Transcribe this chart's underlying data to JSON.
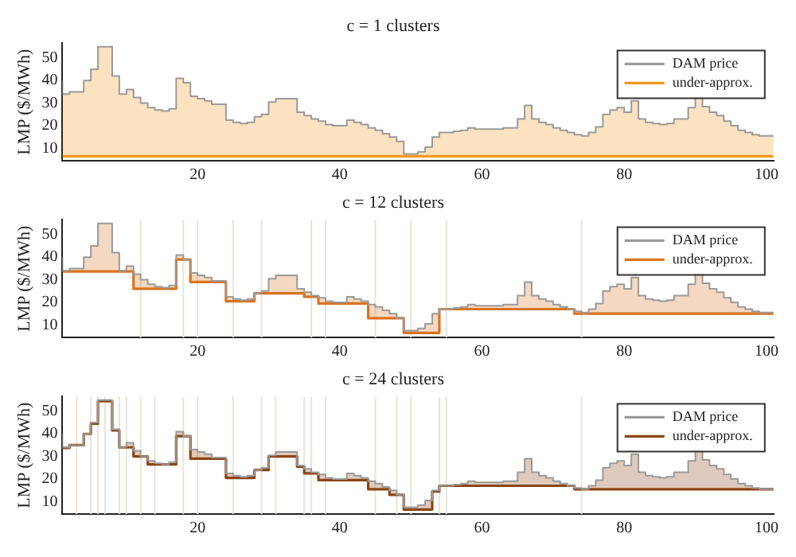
{
  "chart_data": [
    {
      "type": "step",
      "title": "c = 1 clusters",
      "ylabel": "LMP ($/MWh)",
      "xlim": [
        1,
        101
      ],
      "xticks": [
        20,
        40,
        60,
        80,
        100
      ],
      "ylim": [
        4.5,
        56.5
      ],
      "yticks": [
        10,
        20,
        30,
        40,
        50
      ],
      "legend": "top right",
      "x": [
        1,
        2,
        3,
        4,
        5,
        6,
        7,
        8,
        9,
        10,
        11,
        12,
        13,
        14,
        15,
        16,
        17,
        18,
        19,
        20,
        21,
        22,
        23,
        24,
        25,
        26,
        27,
        28,
        29,
        30,
        31,
        32,
        33,
        34,
        35,
        36,
        37,
        38,
        39,
        40,
        41,
        42,
        43,
        44,
        45,
        46,
        47,
        48,
        49,
        50,
        51,
        52,
        53,
        54,
        55,
        56,
        57,
        58,
        59,
        60,
        61,
        62,
        63,
        64,
        65,
        66,
        67,
        68,
        69,
        70,
        71,
        72,
        73,
        74,
        75,
        76,
        77,
        78,
        79,
        80,
        81,
        82,
        83,
        84,
        85,
        86,
        87,
        88,
        89,
        90,
        91,
        92,
        93,
        94,
        95,
        96,
        97,
        98,
        99,
        100,
        101
      ],
      "series": [
        {
          "name": "DAM price",
          "color": "#9a9a9a",
          "values": [
            40,
            34,
            35,
            35,
            40,
            45,
            55,
            55,
            42,
            34,
            36,
            32.5,
            30,
            28,
            27,
            26.5,
            27.5,
            41,
            39,
            33,
            32,
            31,
            29.5,
            29.5,
            22.5,
            21.5,
            21,
            21.5,
            24,
            25,
            30.5,
            32,
            32,
            32,
            26,
            24.5,
            23,
            22,
            20.5,
            20,
            20,
            22.5,
            21.5,
            20.5,
            19,
            18,
            16.5,
            15,
            13,
            7.5,
            7.5,
            8.5,
            10.5,
            15,
            17,
            17,
            17.5,
            18,
            19,
            18.5,
            18.5,
            18.5,
            18.5,
            19,
            19,
            23,
            29,
            23,
            21.5,
            20.5,
            19,
            18,
            17,
            16,
            15.5,
            17,
            19.5,
            25,
            27,
            28,
            26,
            31,
            23,
            21.5,
            21,
            20.5,
            21,
            23,
            23,
            28,
            33,
            28.5,
            26,
            24.5,
            22,
            20,
            18,
            17,
            16,
            15.5,
            15.5
          ]
        },
        {
          "name": "under-approx.",
          "color": "#f5961e",
          "values": [
            6.5,
            6.5,
            6.5,
            6.5,
            6.5,
            6.5,
            6.5,
            6.5,
            6.5,
            6.5,
            6.5,
            6.5,
            6.5,
            6.5,
            6.5,
            6.5,
            6.5,
            6.5,
            6.5,
            6.5,
            6.5,
            6.5,
            6.5,
            6.5,
            6.5,
            6.5,
            6.5,
            6.5,
            6.5,
            6.5,
            6.5,
            6.5,
            6.5,
            6.5,
            6.5,
            6.5,
            6.5,
            6.5,
            6.5,
            6.5,
            6.5,
            6.5,
            6.5,
            6.5,
            6.5,
            6.5,
            6.5,
            6.5,
            6.5,
            6.5,
            6.5,
            6.5,
            6.5,
            6.5,
            6.5,
            6.5,
            6.5,
            6.5,
            6.5,
            6.5,
            6.5,
            6.5,
            6.5,
            6.5,
            6.5,
            6.5,
            6.5,
            6.5,
            6.5,
            6.5,
            6.5,
            6.5,
            6.5,
            6.5,
            6.5,
            6.5,
            6.5,
            6.5,
            6.5,
            6.5,
            6.5,
            6.5,
            6.5,
            6.5,
            6.5,
            6.5,
            6.5,
            6.5,
            6.5,
            6.5,
            6.5,
            6.5,
            6.5,
            6.5,
            6.5,
            6.5,
            6.5,
            6.5,
            6.5,
            6.5,
            6.5
          ],
          "lower": [
            6.5,
            6.5,
            6.5,
            6.5,
            6.5,
            6.5,
            6.5,
            6.5,
            6.5,
            6.5,
            6.5,
            6.5,
            6.5,
            6.5,
            6.5,
            6.5,
            6.5,
            6.5,
            6.5,
            6.5,
            6.5,
            6.5,
            6.5,
            6.5,
            6.5,
            6.5,
            6.5,
            6.5,
            6.5,
            6.5,
            6.5,
            6.5,
            6.5,
            6.5,
            6.5,
            6.5,
            6.5,
            6.5,
            6.5,
            6.5,
            6.5,
            6.5,
            6.5,
            6.5,
            6.5,
            6.5,
            6.5,
            6.5,
            6.5,
            6.5,
            6.5,
            6.5,
            6.5,
            6.5,
            6.5,
            6.5,
            6.5,
            6.5,
            6.5,
            6.5,
            6.5,
            6.5,
            6.5,
            6.5,
            6.5,
            6.5,
            6.5,
            6.5,
            6.5,
            6.5,
            6.5,
            6.5,
            6.5,
            6.5,
            6.5,
            6.5,
            6.5,
            6.5,
            6.5,
            6.5,
            6.5,
            6.5,
            6.5,
            6.5,
            6.5,
            6.5,
            6.5,
            6.5,
            6.5,
            6.5,
            6.5,
            6.5,
            6.5,
            6.5,
            6.5,
            6.5,
            6.5,
            6.5,
            6.5,
            6.5,
            6.5
          ],
          "upper": [
            40,
            34,
            35,
            35,
            40,
            45,
            55,
            55,
            42,
            34,
            36,
            32.5,
            30,
            28,
            27,
            26.5,
            27.5,
            41,
            39,
            33,
            32,
            31,
            29.5,
            29.5,
            22.5,
            21.5,
            21,
            21.5,
            24,
            25,
            30.5,
            32,
            32,
            32,
            26,
            24.5,
            23,
            22,
            20.5,
            20,
            20,
            22.5,
            21.5,
            20.5,
            19,
            18,
            16.5,
            15,
            13,
            7.5,
            7.5,
            8.5,
            10.5,
            15,
            17,
            17,
            17.5,
            18,
            19,
            18.5,
            18.5,
            18.5,
            18.5,
            19,
            19,
            23,
            29,
            23,
            21.5,
            20.5,
            19,
            18,
            17,
            16,
            15.5,
            17,
            19.5,
            25,
            27,
            28,
            26,
            31,
            23,
            21.5,
            21,
            20.5,
            21,
            23,
            23,
            28,
            33,
            28.5,
            26,
            24.5,
            22,
            20,
            18,
            17,
            16,
            15.5,
            15.5
          ]
        }
      ]
    },
    {
      "type": "step",
      "title": "c = 12 clusters",
      "ylabel": "LMP ($/MWh)",
      "xlim": [
        1,
        101
      ],
      "xticks": [
        20,
        40,
        60,
        80,
        100
      ],
      "ylim": [
        4.5,
        56.5
      ],
      "yticks": [
        10,
        20,
        30,
        40,
        50
      ],
      "legend": "top right",
      "x": [
        1,
        2,
        3,
        4,
        5,
        6,
        7,
        8,
        9,
        10,
        11,
        12,
        13,
        14,
        15,
        16,
        17,
        18,
        19,
        20,
        21,
        22,
        23,
        24,
        25,
        26,
        27,
        28,
        29,
        30,
        31,
        32,
        33,
        34,
        35,
        36,
        37,
        38,
        39,
        40,
        41,
        42,
        43,
        44,
        45,
        46,
        47,
        48,
        49,
        50,
        51,
        52,
        53,
        54,
        55,
        56,
        57,
        58,
        59,
        60,
        61,
        62,
        63,
        64,
        65,
        66,
        67,
        68,
        69,
        70,
        71,
        72,
        73,
        74,
        75,
        76,
        77,
        78,
        79,
        80,
        81,
        82,
        83,
        84,
        85,
        86,
        87,
        88,
        89,
        90,
        91,
        92,
        93,
        94,
        95,
        96,
        97,
        98,
        99,
        100,
        101
      ],
      "series": [
        {
          "name": "DAM price",
          "color": "#9a9a9a",
          "values": [
            40,
            34,
            35,
            35,
            40,
            45,
            55,
            55,
            42,
            34,
            36,
            32.5,
            30,
            28,
            27,
            26.5,
            27.5,
            41,
            39,
            33,
            32,
            31,
            29.5,
            29.5,
            22.5,
            21.5,
            21,
            21.5,
            24,
            25,
            30.5,
            32,
            32,
            32,
            26,
            24.5,
            23,
            22,
            20.5,
            20,
            20,
            22.5,
            21.5,
            20.5,
            19,
            18,
            16.5,
            15,
            13,
            7.5,
            7.5,
            8.5,
            10.5,
            15,
            17,
            17,
            17.5,
            18,
            19,
            18.5,
            18.5,
            18.5,
            18.5,
            19,
            19,
            23,
            29,
            23,
            21.5,
            20.5,
            19,
            18,
            17,
            16,
            15.5,
            17,
            19.5,
            25,
            27,
            28,
            26,
            31,
            23,
            21.5,
            21,
            20.5,
            21,
            23,
            23,
            28,
            33,
            28.5,
            26,
            24.5,
            22,
            20,
            18,
            17,
            16,
            15.5,
            15.5
          ]
        },
        {
          "name": "under-approx.",
          "color": "#d9731f",
          "values": [
            33.7,
            33.7,
            33.7,
            33.7,
            33.7,
            33.7,
            33.7,
            33.7,
            33.7,
            33.7,
            33.7,
            26,
            26,
            26,
            26,
            26,
            26,
            39,
            39,
            29,
            29,
            29,
            29,
            29,
            20.5,
            20.5,
            20.5,
            20.5,
            24,
            24,
            24,
            24,
            24,
            24,
            24,
            22.5,
            22.5,
            19.5,
            19.5,
            19.5,
            19.5,
            19.5,
            19.5,
            19.5,
            13,
            13,
            13,
            13,
            13,
            6.5,
            6.5,
            6.5,
            6.5,
            6.5,
            17,
            17,
            17,
            17,
            17,
            17,
            17,
            17,
            17,
            17,
            17,
            17,
            17,
            17,
            17,
            17,
            17,
            17,
            17,
            15,
            15,
            15,
            15,
            15,
            15,
            15,
            15,
            15,
            15,
            15,
            15,
            15,
            15,
            15,
            15,
            15,
            15,
            15,
            15,
            15,
            15,
            15,
            15,
            15,
            15,
            15,
            15
          ],
          "lower": [
            33.7,
            33.7,
            33.7,
            33.7,
            33.7,
            33.7,
            33.7,
            33.7,
            33.7,
            33.7,
            33.7,
            26,
            26,
            26,
            26,
            26,
            26,
            39,
            39,
            29,
            29,
            29,
            29,
            29,
            20.5,
            20.5,
            20.5,
            20.5,
            24,
            24,
            24,
            24,
            24,
            24,
            24,
            22.5,
            22.5,
            19.5,
            19.5,
            19.5,
            19.5,
            19.5,
            19.5,
            19.5,
            13,
            13,
            13,
            13,
            13,
            6.5,
            6.5,
            6.5,
            6.5,
            6.5,
            17,
            17,
            17,
            17,
            17,
            17,
            17,
            17,
            17,
            17,
            17,
            17,
            17,
            17,
            17,
            17,
            17,
            17,
            17,
            15,
            15,
            15,
            15,
            15,
            15,
            15,
            15,
            15,
            15,
            15,
            15,
            15,
            15,
            15,
            15,
            15,
            15,
            15,
            15,
            15,
            15,
            15,
            15,
            15,
            15,
            15,
            15
          ],
          "upper": [
            40,
            34,
            35,
            35,
            40,
            45,
            55,
            55,
            42,
            34,
            36,
            32.5,
            30,
            28,
            27,
            26.5,
            27.5,
            41,
            39,
            33,
            32,
            31,
            29.5,
            29.5,
            22.5,
            21.5,
            21,
            21.5,
            24,
            25,
            30.5,
            32,
            32,
            32,
            26,
            24.5,
            23,
            22,
            20.5,
            20,
            20,
            22.5,
            21.5,
            20.5,
            19,
            18,
            16.5,
            15,
            13,
            7.5,
            7.5,
            8.5,
            10.5,
            15,
            17,
            17,
            17.5,
            18,
            19,
            18.5,
            18.5,
            18.5,
            18.5,
            19,
            19,
            23,
            29,
            23,
            21.5,
            20.5,
            19,
            18,
            17,
            16,
            15.5,
            17,
            19.5,
            25,
            27,
            28,
            26,
            31,
            23,
            21.5,
            21,
            20.5,
            21,
            23,
            23,
            28,
            33,
            28.5,
            26,
            24.5,
            22,
            20,
            18,
            17,
            16,
            15.5,
            15.5
          ]
        }
      ],
      "ref_lines": [
        {
          "axis": "x",
          "value": 12,
          "color": "#ebe3da"
        },
        {
          "axis": "x",
          "value": 18,
          "color": "#ebe3da"
        },
        {
          "axis": "x",
          "value": 20,
          "color": "#ebe3da"
        },
        {
          "axis": "x",
          "value": 25,
          "color": "#ebe3da"
        },
        {
          "axis": "x",
          "value": 29,
          "color": "#ebe3da"
        },
        {
          "axis": "x",
          "value": 36,
          "color": "#ebe3da"
        },
        {
          "axis": "x",
          "value": 38,
          "color": "#ebe3da"
        },
        {
          "axis": "x",
          "value": 45,
          "color": "#ebe3da"
        },
        {
          "axis": "x",
          "value": 50,
          "color": "#ebe3da"
        },
        {
          "axis": "x",
          "value": 55,
          "color": "#ebe3da"
        },
        {
          "axis": "x",
          "value": 74,
          "color": "#ebe3da"
        }
      ]
    },
    {
      "type": "step",
      "title": "c = 24 clusters",
      "ylabel": "LMP ($/MWh)",
      "xlim": [
        1,
        101
      ],
      "xticks": [
        20,
        40,
        60,
        80,
        100
      ],
      "ylim": [
        4.5,
        56.5
      ],
      "yticks": [
        10,
        20,
        30,
        40,
        50
      ],
      "legend": "top right",
      "x": [
        1,
        2,
        3,
        4,
        5,
        6,
        7,
        8,
        9,
        10,
        11,
        12,
        13,
        14,
        15,
        16,
        17,
        18,
        19,
        20,
        21,
        22,
        23,
        24,
        25,
        26,
        27,
        28,
        29,
        30,
        31,
        32,
        33,
        34,
        35,
        36,
        37,
        38,
        39,
        40,
        41,
        42,
        43,
        44,
        45,
        46,
        47,
        48,
        49,
        50,
        51,
        52,
        53,
        54,
        55,
        56,
        57,
        58,
        59,
        60,
        61,
        62,
        63,
        64,
        65,
        66,
        67,
        68,
        69,
        70,
        71,
        72,
        73,
        74,
        75,
        76,
        77,
        78,
        79,
        80,
        81,
        82,
        83,
        84,
        85,
        86,
        87,
        88,
        89,
        90,
        91,
        92,
        93,
        94,
        95,
        96,
        97,
        98,
        99,
        100,
        101
      ],
      "series": [
        {
          "name": "DAM price",
          "color": "#9a9a9a",
          "values": [
            40,
            34,
            35,
            35,
            40,
            45,
            55,
            55,
            42,
            34,
            36,
            32.5,
            30,
            28,
            27,
            26.5,
            27.5,
            41,
            39,
            33,
            32,
            31,
            29.5,
            29.5,
            22.5,
            21.5,
            21,
            21.5,
            24,
            25,
            30.5,
            32,
            32,
            32,
            26,
            24.5,
            23,
            22,
            20.5,
            20,
            20,
            22.5,
            21.5,
            20.5,
            19,
            18,
            16.5,
            15,
            13,
            7.5,
            7.5,
            8.5,
            10.5,
            15,
            17,
            17,
            17.5,
            18,
            19,
            18.5,
            18.5,
            18.5,
            18.5,
            19,
            19,
            23,
            29,
            23,
            21.5,
            20.5,
            19,
            18,
            17,
            16,
            15.5,
            17,
            19.5,
            25,
            27,
            28,
            26,
            31,
            23,
            21.5,
            21,
            20.5,
            21,
            23,
            23,
            28,
            33,
            28.5,
            26,
            24.5,
            22,
            20,
            18,
            17,
            16,
            15.5,
            15.5
          ]
        },
        {
          "name": "under-approx.",
          "color": "#8b4513",
          "values": [
            33.8,
            33.8,
            35,
            35,
            40,
            44.5,
            54.5,
            54.5,
            41.5,
            34,
            34,
            30,
            30,
            26.5,
            26.5,
            26.5,
            26.5,
            39,
            39,
            29,
            29,
            29,
            29,
            29,
            20.5,
            20.5,
            20.5,
            20.5,
            24,
            24,
            30,
            30,
            30,
            30,
            25.5,
            22.5,
            22.5,
            19.5,
            19.5,
            19.5,
            19.5,
            19.5,
            19.5,
            19.5,
            15.5,
            15.5,
            15.5,
            13,
            13,
            6.5,
            6.5,
            6.5,
            6.5,
            14.5,
            17,
            17,
            17,
            17,
            17,
            17,
            17,
            17,
            17,
            17,
            17,
            17,
            17,
            17,
            17,
            17,
            17,
            17,
            17,
            15.5,
            15.5,
            15.5,
            15.5,
            15.5,
            15.5,
            15.5,
            15.5,
            15.5,
            15.5,
            15.5,
            15.5,
            15.5,
            15.5,
            15.5,
            15.5,
            15.5,
            15.5,
            15.5,
            15.5,
            15.5,
            15.5,
            15.5,
            15.5,
            15.5,
            15.5,
            15.5,
            15.5
          ],
          "lower": [
            33.8,
            33.8,
            35,
            35,
            40,
            44.5,
            54.5,
            54.5,
            41.5,
            34,
            34,
            30,
            30,
            26.5,
            26.5,
            26.5,
            26.5,
            39,
            39,
            29,
            29,
            29,
            29,
            29,
            20.5,
            20.5,
            20.5,
            20.5,
            24,
            24,
            30,
            30,
            30,
            30,
            25.5,
            22.5,
            22.5,
            19.5,
            19.5,
            19.5,
            19.5,
            19.5,
            19.5,
            19.5,
            15.5,
            15.5,
            15.5,
            13,
            13,
            6.5,
            6.5,
            6.5,
            6.5,
            14.5,
            17,
            17,
            17,
            17,
            17,
            17,
            17,
            17,
            17,
            17,
            17,
            17,
            17,
            17,
            17,
            17,
            17,
            17,
            17,
            15.5,
            15.5,
            15.5,
            15.5,
            15.5,
            15.5,
            15.5,
            15.5,
            15.5,
            15.5,
            15.5,
            15.5,
            15.5,
            15.5,
            15.5,
            15.5,
            15.5,
            15.5,
            15.5,
            15.5,
            15.5,
            15.5,
            15.5,
            15.5,
            15.5,
            15.5,
            15.5,
            15.5
          ],
          "upper": [
            40,
            34,
            35,
            35,
            40,
            45,
            55,
            55,
            42,
            34,
            36,
            32.5,
            30,
            28,
            27,
            26.5,
            27.5,
            41,
            39,
            33,
            32,
            31,
            29.5,
            29.5,
            22.5,
            21.5,
            21,
            21.5,
            24,
            25,
            30.5,
            32,
            32,
            32,
            26,
            24.5,
            23,
            22,
            20.5,
            20,
            20,
            22.5,
            21.5,
            20.5,
            19,
            18,
            16.5,
            15,
            13,
            7.5,
            7.5,
            8.5,
            10.5,
            15,
            17,
            17,
            17.5,
            18,
            19,
            18.5,
            18.5,
            18.5,
            18.5,
            19,
            19,
            23,
            29,
            23,
            21.5,
            20.5,
            19,
            18,
            17,
            16,
            15.5,
            17,
            19.5,
            25,
            27,
            28,
            26,
            31,
            23,
            21.5,
            21,
            20.5,
            21,
            23,
            23,
            28,
            33,
            28.5,
            26,
            24.5,
            22,
            20,
            18,
            17,
            16,
            15.5,
            15.5
          ]
        }
      ],
      "ref_lines": [
        {
          "axis": "x",
          "value": 3,
          "color": "#ebe3da"
        },
        {
          "axis": "x",
          "value": 5,
          "color": "#ebe3da"
        },
        {
          "axis": "x",
          "value": 6,
          "color": "#ebe3da"
        },
        {
          "axis": "x",
          "value": 7,
          "color": "#ebe3da"
        },
        {
          "axis": "x",
          "value": 9,
          "color": "#ebe3da"
        },
        {
          "axis": "x",
          "value": 10,
          "color": "#ebe3da"
        },
        {
          "axis": "x",
          "value": 12,
          "color": "#ebe3da"
        },
        {
          "axis": "x",
          "value": 14,
          "color": "#ebe3da"
        },
        {
          "axis": "x",
          "value": 18,
          "color": "#ebe3da"
        },
        {
          "axis": "x",
          "value": 20,
          "color": "#ebe3da"
        },
        {
          "axis": "x",
          "value": 25,
          "color": "#ebe3da"
        },
        {
          "axis": "x",
          "value": 29,
          "color": "#ebe3da"
        },
        {
          "axis": "x",
          "value": 31,
          "color": "#ebe3da"
        },
        {
          "axis": "x",
          "value": 35,
          "color": "#ebe3da"
        },
        {
          "axis": "x",
          "value": 36,
          "color": "#ebe3da"
        },
        {
          "axis": "x",
          "value": 38,
          "color": "#ebe3da"
        },
        {
          "axis": "x",
          "value": 45,
          "color": "#ebe3da"
        },
        {
          "axis": "x",
          "value": 48,
          "color": "#ebe3da"
        },
        {
          "axis": "x",
          "value": 50,
          "color": "#ebe3da"
        },
        {
          "axis": "x",
          "value": 54,
          "color": "#ebe3da"
        },
        {
          "axis": "x",
          "value": 55,
          "color": "#ebe3da"
        },
        {
          "axis": "x",
          "value": 74,
          "color": "#ebe3da"
        }
      ]
    }
  ]
}
